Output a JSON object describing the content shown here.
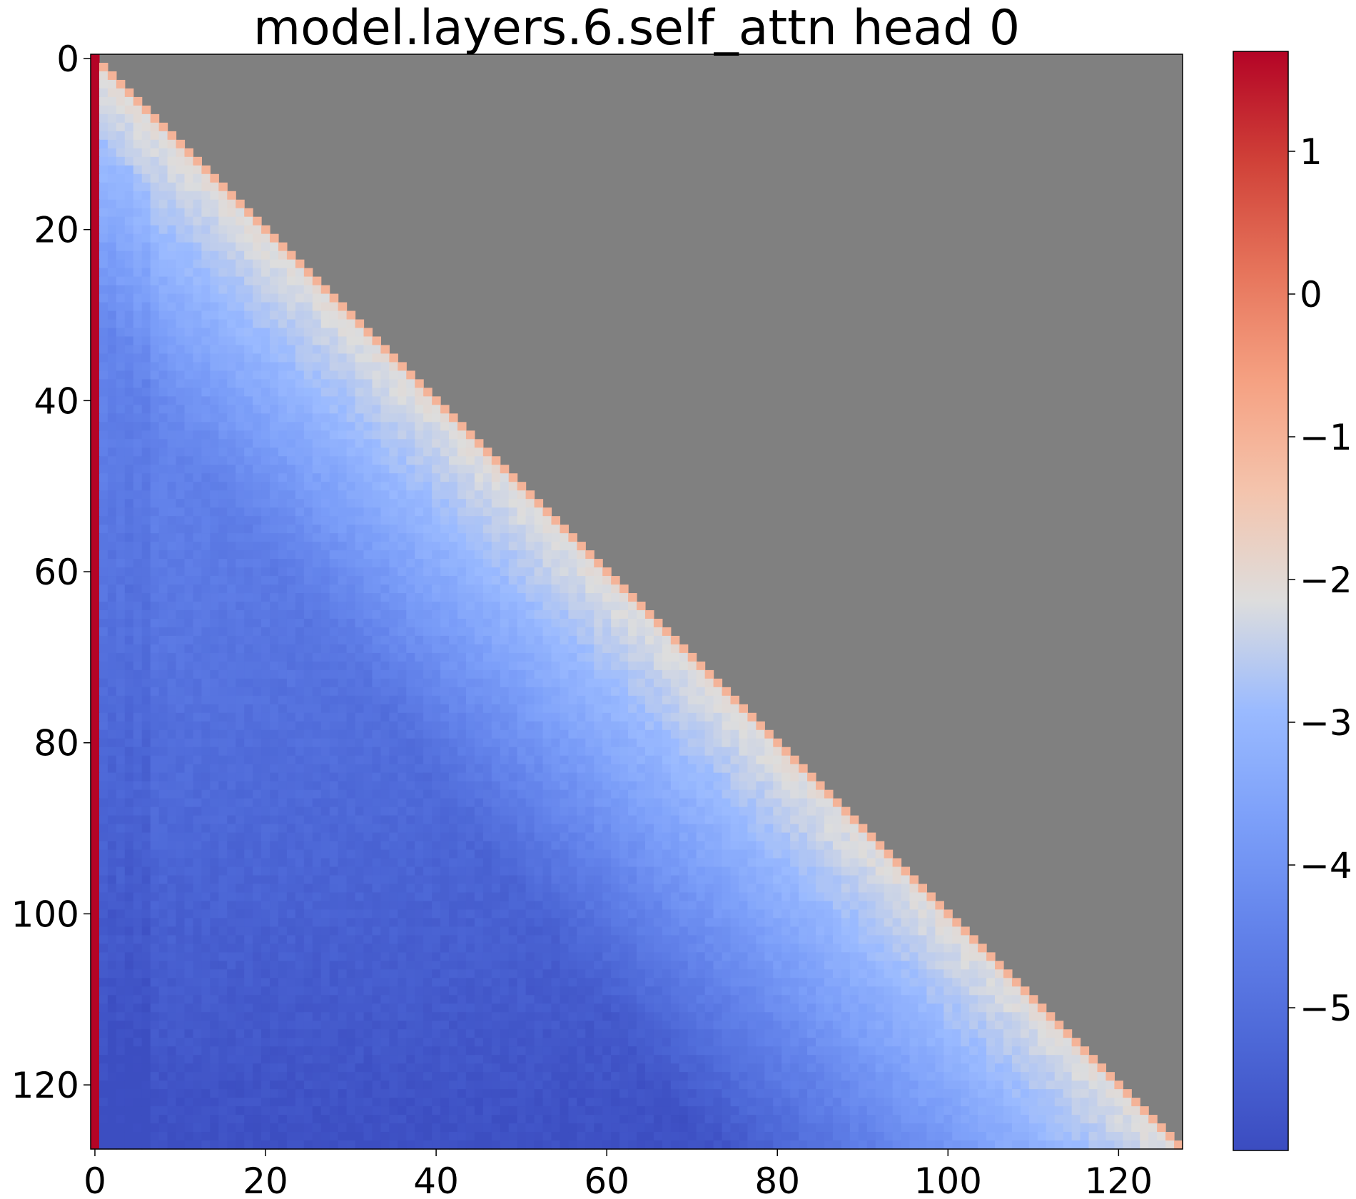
{
  "chart_data": {
    "type": "heatmap",
    "title": "model.layers.6.self_attn head 0",
    "colormap": "coolwarm",
    "masked_color": "#808080",
    "grid": false,
    "rows": 128,
    "cols": 128,
    "mask": "upper-triangle (j > i) masked",
    "xlim": [
      -0.5,
      127.5
    ],
    "ylim": [
      127.5,
      -0.5
    ],
    "xticks": [
      0,
      20,
      40,
      60,
      80,
      100,
      120
    ],
    "yticks": [
      0,
      20,
      40,
      60,
      80,
      100,
      120
    ],
    "colorbar": {
      "vmin": -6.0,
      "vmax": 1.7,
      "ticks": [
        1,
        0,
        -1,
        -2,
        -3,
        -4,
        -5
      ],
      "tick_labels": [
        "1",
        "0",
        "−1",
        "−2",
        "−3",
        "−4",
        "−5"
      ]
    },
    "value_model": {
      "column_0": 1.7,
      "diagonal": -1.0,
      "near_diagonal_floor": -2.0,
      "depth_drop_per_offset": 0.07,
      "floor_bottom_left": -5.9,
      "first_cols_darker": [
        1,
        2,
        3,
        4,
        5,
        6
      ]
    }
  }
}
